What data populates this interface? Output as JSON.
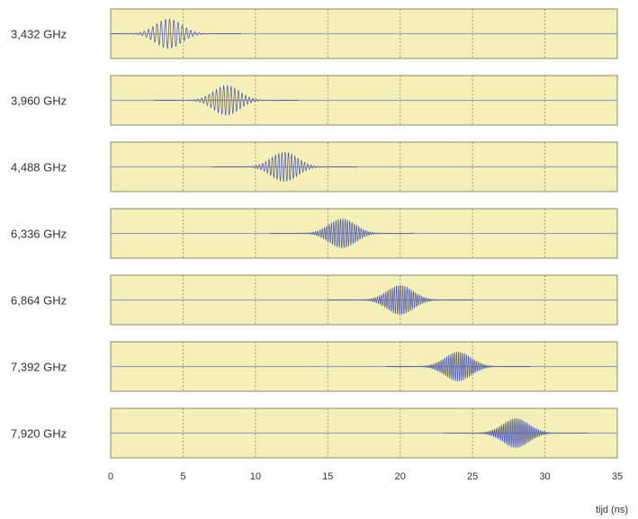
{
  "chart_data": {
    "type": "line",
    "title": "",
    "xlabel": "tijd (ns)",
    "ylabel": "",
    "xlim": [
      0,
      35
    ],
    "xticks": [
      "0",
      "5",
      "10",
      "15",
      "20",
      "25",
      "30",
      "35"
    ],
    "grid": true,
    "series": [
      {
        "name": "3,432 GHz",
        "pulse_center_ns": 4,
        "carrier_ghz": 3.432
      },
      {
        "name": "3,960 GHz",
        "pulse_center_ns": 8,
        "carrier_ghz": 3.96
      },
      {
        "name": "4,488 GHz",
        "pulse_center_ns": 12,
        "carrier_ghz": 4.488
      },
      {
        "name": "6,336 GHz",
        "pulse_center_ns": 16,
        "carrier_ghz": 6.336
      },
      {
        "name": "6,864 GHz",
        "pulse_center_ns": 20,
        "carrier_ghz": 6.864
      },
      {
        "name": "7,392 GHz",
        "pulse_center_ns": 24,
        "carrier_ghz": 7.392
      },
      {
        "name": "7,920 GHz",
        "pulse_center_ns": 28,
        "carrier_ghz": 7.92
      }
    ]
  },
  "colors": {
    "panel_bg": "#f5f0b8",
    "panel_border": "#8a8a6a",
    "grid": "#555544",
    "baseline": "#9aa0c8",
    "wave": "#4a55a8"
  }
}
